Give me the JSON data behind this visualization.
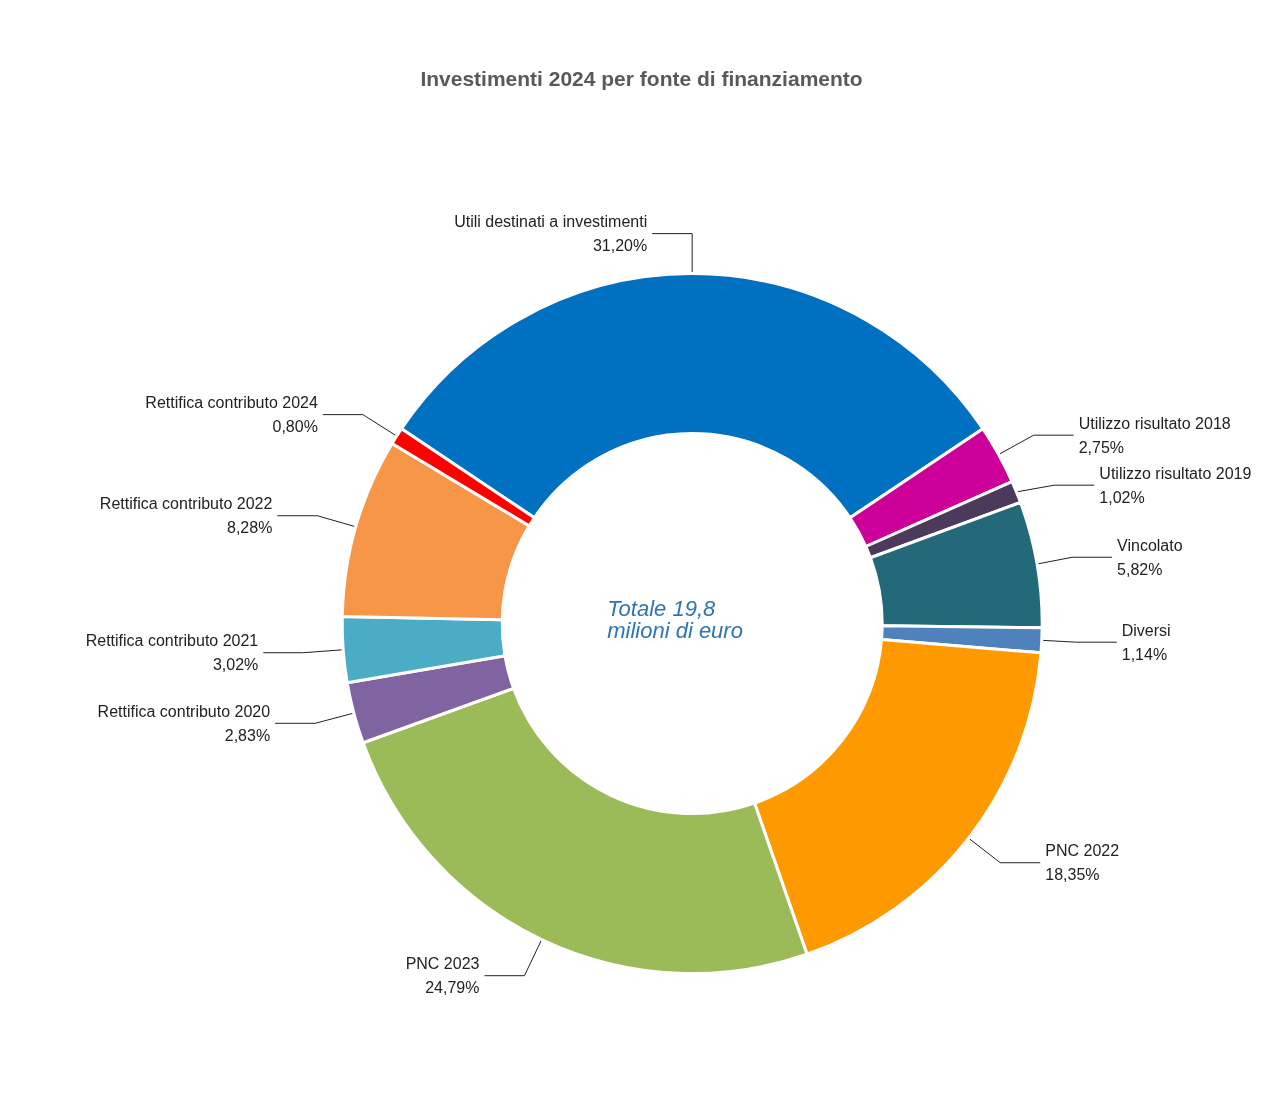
{
  "chart_data": {
    "type": "donut",
    "title": "Investimenti 2024 per fonte di finanziamento",
    "categories": [
      "Utili destinati a investimenti",
      "Utilizzo risultato 2018",
      "Utilizzo risultato 2019",
      "Vincolato",
      "Diversi",
      "PNC 2022",
      "PNC 2023",
      "Rettifica contributo 2020",
      "Rettifica contributo 2021",
      "Rettifica contributo 2022",
      "Rettifica contributo 2024"
    ],
    "values": [
      31.2,
      2.75,
      1.02,
      5.82,
      1.14,
      18.35,
      24.79,
      2.83,
      3.02,
      8.28,
      0.8
    ],
    "value_labels": [
      "31,20%",
      "2,75%",
      "1,02%",
      "5,82%",
      "1,14%",
      "18,35%",
      "24,79%",
      "2,83%",
      "3,02%",
      "8,28%",
      "0,80%"
    ],
    "colors": [
      "#0070c0",
      "#cc0099",
      "#4b3a5c",
      "#23697a",
      "#4f81bd",
      "#ff9900",
      "#9bbb59",
      "#8064a2",
      "#4bacc6",
      "#f79646",
      "#ff0000"
    ],
    "annotations": [
      "Totale 19,8 milioni di euro"
    ],
    "legend": false
  }
}
